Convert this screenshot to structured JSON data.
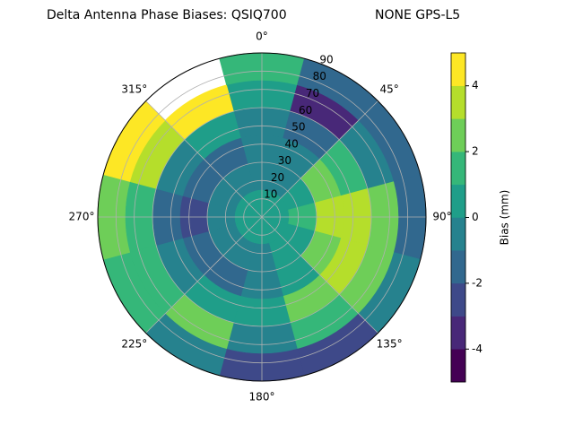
{
  "chart_data": {
    "type": "polar_contour",
    "title": "Delta Antenna Phase Biases: QSIQ700",
    "subtitle": "NONE GPS-L5",
    "colorbar_label": "Bias (mm)",
    "azimuth": [
      0,
      30,
      60,
      90,
      120,
      150,
      180,
      210,
      240,
      270,
      300,
      330
    ],
    "zenith": [
      7.5,
      22.5,
      37.5,
      52.5,
      67.5,
      82.5
    ],
    "values": [
      [
        0,
        0,
        0,
        0,
        0,
        0,
        0,
        0,
        0,
        0,
        0,
        0
      ],
      [
        -0.5,
        -0.5,
        0.5,
        1,
        0.5,
        0,
        -0.5,
        -1,
        -1,
        -1,
        -1,
        -0.5
      ],
      [
        -1,
        -1,
        2,
        3,
        2,
        0.5,
        -0.5,
        -1.5,
        -2,
        -2.5,
        -2,
        -2
      ],
      [
        -1,
        -2,
        1.5,
        3.5,
        3,
        2,
        0,
        0.5,
        -1,
        -1.5,
        -1,
        0.5
      ],
      [
        0.5,
        -3.5,
        -1,
        2,
        2.5,
        1,
        -1,
        2,
        1,
        1.5,
        3,
        4
      ],
      [
        1.5,
        -2,
        -1.5,
        -1.5,
        -1,
        -2.5,
        -3,
        -1,
        1,
        2,
        4.5,
        null
      ]
    ],
    "levels": [
      -5,
      -4,
      -3,
      -2,
      -1,
      0,
      1,
      2,
      3,
      4,
      5
    ],
    "colors": [
      "#440154",
      "#482878",
      "#3e4989",
      "#31688e",
      "#26828e",
      "#1f9e89",
      "#35b779",
      "#6ece58",
      "#b5de2b",
      "#fde725"
    ],
    "clim": [
      -5,
      5
    ],
    "cticks": [
      -4,
      -2,
      0,
      2,
      4
    ],
    "rlim": [
      0,
      90
    ],
    "rticks": [
      10,
      20,
      30,
      40,
      50,
      60,
      70,
      80,
      90
    ],
    "thetaticks": [
      {
        "value": 0,
        "label": "0°"
      },
      {
        "value": 45,
        "label": "45°"
      },
      {
        "value": 90,
        "label": "90°"
      },
      {
        "value": 135,
        "label": "135°"
      },
      {
        "value": 180,
        "label": "180°"
      },
      {
        "value": 225,
        "label": "225°"
      },
      {
        "value": 270,
        "label": "270°"
      },
      {
        "value": 315,
        "label": "315°"
      }
    ],
    "grid": true
  }
}
